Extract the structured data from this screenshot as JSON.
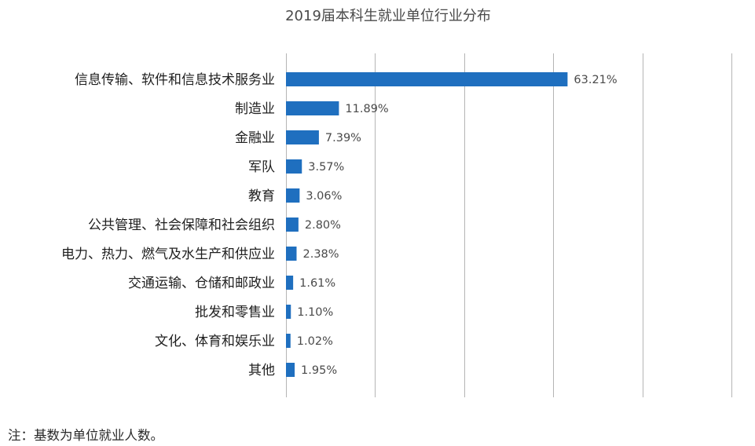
{
  "chart_data": {
    "type": "bar",
    "orientation": "horizontal",
    "title": "2019届本科生就业单位行业分布",
    "categories": [
      "信息传输、软件和信息技术服务业",
      "制造业",
      "金融业",
      "军队",
      "教育",
      "公共管理、社会保障和社会组织",
      "电力、热力、燃气及水生产和供应业",
      "交通运输、仓储和邮政业",
      "批发和零售业",
      "文化、体育和娱乐业",
      "其他"
    ],
    "values": [
      63.21,
      11.89,
      7.39,
      3.57,
      3.06,
      2.8,
      2.38,
      1.61,
      1.1,
      1.02,
      1.95
    ],
    "value_labels": [
      "63.21%",
      "11.89%",
      "7.39%",
      "3.57%",
      "3.06%",
      "2.80%",
      "2.38%",
      "1.61%",
      "1.10%",
      "1.02%",
      "1.95%"
    ],
    "xlim": [
      0,
      100
    ],
    "grid": true,
    "legend": "none",
    "bar_color": "#1f6fbf",
    "grid_color": "#b5b5b5"
  },
  "footnote": "注：基数为单位就业人数。"
}
